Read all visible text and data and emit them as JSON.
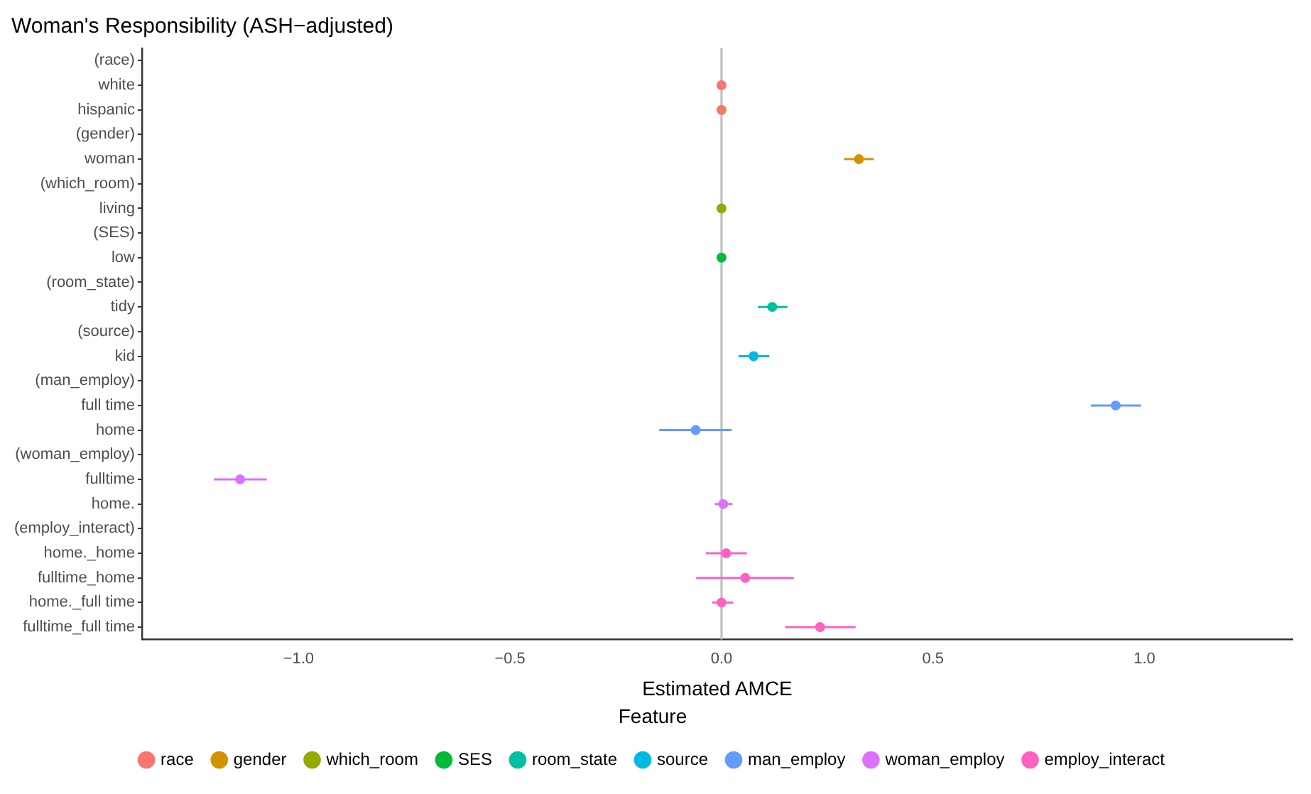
{
  "chart_data": {
    "type": "scatter",
    "orientation": "horizontal",
    "title": "Woman's Responsibility (ASH−adjusted)",
    "xlabel": "Estimated AMCE",
    "legend_title": "Feature",
    "legend": "bottom",
    "grid": false,
    "marker": "circle",
    "categories": [
      "(race)",
      "white",
      "hispanic",
      "(gender)",
      "woman",
      "(which_room)",
      "living",
      "(SES)",
      "low",
      "(room_state)",
      "tidy",
      "(source)",
      "kid",
      "(man_employ)",
      "full time",
      "home",
      "(woman_employ)",
      "fulltime",
      "home.",
      "(employ_interact)",
      "home._home",
      "fulltime_home",
      "home._full time",
      "fulltime_full time"
    ],
    "xlim": [
      -1.37,
      1.35
    ],
    "xticks": [
      {
        "value": -1,
        "label": "−1.0"
      },
      {
        "value": -0.5,
        "label": "−0.5"
      },
      {
        "value": 0,
        "label": "0.0"
      },
      {
        "value": 0.5,
        "label": "0.5"
      },
      {
        "value": 1,
        "label": "1.0"
      }
    ],
    "ref_lines": [
      {
        "axis": "x",
        "value": 0,
        "label": null,
        "color": "#bdbdbd"
      }
    ],
    "series": [
      {
        "name": "race",
        "color": "#f8766d",
        "values": [
          null,
          0,
          0,
          null,
          null,
          null,
          null,
          null,
          null,
          null,
          null,
          null,
          null,
          null,
          null,
          null,
          null,
          null,
          null,
          null,
          null,
          null,
          null,
          null
        ]
      },
      {
        "name": "gender",
        "color": "#d39200",
        "values": [
          null,
          null,
          null,
          null,
          0.325,
          null,
          null,
          null,
          null,
          null,
          null,
          null,
          null,
          null,
          null,
          null,
          null,
          null,
          null,
          null,
          null,
          null,
          null,
          null
        ],
        "errors": [
          null,
          null,
          null,
          null,
          [
            0.29,
            0.36
          ],
          null,
          null,
          null,
          null,
          null,
          null,
          null,
          null,
          null,
          null,
          null,
          null,
          null,
          null,
          null,
          null,
          null,
          null,
          null
        ]
      },
      {
        "name": "which_room",
        "color": "#93aa00",
        "values": [
          null,
          null,
          null,
          null,
          null,
          null,
          0,
          null,
          null,
          null,
          null,
          null,
          null,
          null,
          null,
          null,
          null,
          null,
          null,
          null,
          null,
          null,
          null,
          null
        ]
      },
      {
        "name": "SES",
        "color": "#00ba38",
        "values": [
          null,
          null,
          null,
          null,
          null,
          null,
          null,
          null,
          0,
          null,
          null,
          null,
          null,
          null,
          null,
          null,
          null,
          null,
          null,
          null,
          null,
          null,
          null,
          null
        ]
      },
      {
        "name": "room_state",
        "color": "#00c19f",
        "values": [
          null,
          null,
          null,
          null,
          null,
          null,
          null,
          null,
          null,
          null,
          0.12,
          null,
          null,
          null,
          null,
          null,
          null,
          null,
          null,
          null,
          null,
          null,
          null,
          null
        ],
        "errors": [
          null,
          null,
          null,
          null,
          null,
          null,
          null,
          null,
          null,
          null,
          [
            0.086,
            0.156
          ],
          null,
          null,
          null,
          null,
          null,
          null,
          null,
          null,
          null,
          null,
          null,
          null,
          null
        ]
      },
      {
        "name": "source",
        "color": "#00b9e3",
        "values": [
          null,
          null,
          null,
          null,
          null,
          null,
          null,
          null,
          null,
          null,
          null,
          null,
          0.076,
          null,
          null,
          null,
          null,
          null,
          null,
          null,
          null,
          null,
          null,
          null
        ],
        "errors": [
          null,
          null,
          null,
          null,
          null,
          null,
          null,
          null,
          null,
          null,
          null,
          null,
          [
            0.04,
            0.113
          ],
          null,
          null,
          null,
          null,
          null,
          null,
          null,
          null,
          null,
          null,
          null
        ]
      },
      {
        "name": "man_employ",
        "color": "#619cff",
        "values": [
          null,
          null,
          null,
          null,
          null,
          null,
          null,
          null,
          null,
          null,
          null,
          null,
          null,
          null,
          0.932,
          -0.061,
          null,
          null,
          null,
          null,
          null,
          null,
          null,
          null
        ],
        "errors": [
          null,
          null,
          null,
          null,
          null,
          null,
          null,
          null,
          null,
          null,
          null,
          null,
          null,
          null,
          [
            0.873,
            0.992
          ],
          [
            -0.147,
            0.024
          ],
          null,
          null,
          null,
          null,
          null,
          null,
          null,
          null
        ]
      },
      {
        "name": "woman_employ",
        "color": "#db72fb",
        "values": [
          null,
          null,
          null,
          null,
          null,
          null,
          null,
          null,
          null,
          null,
          null,
          null,
          null,
          null,
          null,
          null,
          null,
          -1.138,
          0.004,
          null,
          null,
          null,
          null,
          null
        ],
        "errors": [
          null,
          null,
          null,
          null,
          null,
          null,
          null,
          null,
          null,
          null,
          null,
          null,
          null,
          null,
          null,
          null,
          null,
          [
            -1.2,
            -1.075
          ],
          [
            -0.016,
            0.026
          ],
          null,
          null,
          null,
          null,
          null
        ]
      },
      {
        "name": "employ_interact",
        "color": "#ff61c3",
        "values": [
          null,
          null,
          null,
          null,
          null,
          null,
          null,
          null,
          null,
          null,
          null,
          null,
          null,
          null,
          null,
          null,
          null,
          null,
          null,
          null,
          0.011,
          0.056,
          0,
          0.233
        ],
        "errors": [
          null,
          null,
          null,
          null,
          null,
          null,
          null,
          null,
          null,
          null,
          null,
          null,
          null,
          null,
          null,
          null,
          null,
          null,
          null,
          null,
          [
            -0.037,
            0.06
          ],
          [
            -0.06,
            0.171
          ],
          [
            -0.022,
            0.027
          ],
          [
            0.15,
            0.317
          ]
        ]
      }
    ]
  }
}
